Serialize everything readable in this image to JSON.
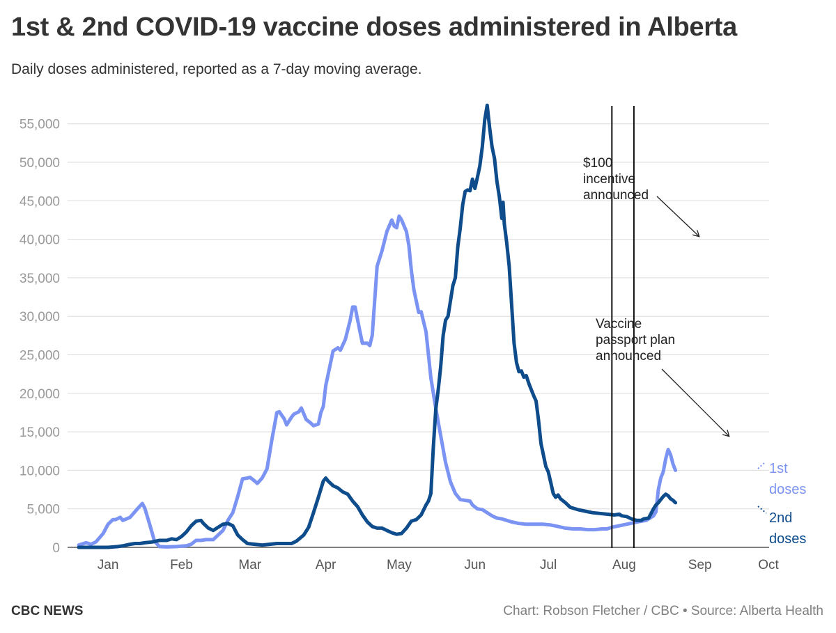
{
  "header": {
    "title": "1st & 2nd COVID-19 vaccine doses administered in Alberta",
    "subtitle": "Daily doses administered, reported as a 7-day moving average."
  },
  "footer": {
    "brand": "CBC NEWS",
    "credit": "Chart: Robson Fletcher / CBC • Source: Alberta Health"
  },
  "colors": {
    "first_doses": "#7b93f2",
    "second_doses": "#0e4c8c",
    "grid": "#dcdcdc",
    "axis_text": "#999999",
    "annotation": "#222222"
  },
  "chart_data": {
    "type": "line",
    "xlabel": "",
    "ylabel": "",
    "x_unit": "day of year 2021",
    "ylim": [
      0,
      57500
    ],
    "y_ticks": [
      0,
      5000,
      10000,
      15000,
      20000,
      25000,
      30000,
      35000,
      40000,
      45000,
      50000,
      55000
    ],
    "y_tick_labels": [
      "0",
      "5,000",
      "10,000",
      "15,000",
      "20,000",
      "25,000",
      "30,000",
      "35,000",
      "40,000",
      "45,000",
      "50,000",
      "55,000"
    ],
    "x_ticks": [
      {
        "label": "Jan",
        "day": 16
      },
      {
        "label": "Feb",
        "day": 46
      },
      {
        "label": "Mar",
        "day": 74
      },
      {
        "label": "Apr",
        "day": 105
      },
      {
        "label": "May",
        "day": 135
      },
      {
        "label": "Jun",
        "day": 166
      },
      {
        "label": "Jul",
        "day": 196
      },
      {
        "label": "Aug",
        "day": 227
      },
      {
        "label": "Sep",
        "day": 258
      },
      {
        "label": "Oct",
        "day": 286
      }
    ],
    "grid": true,
    "series": [
      {
        "name": "1st doses",
        "label_lines": [
          "1st",
          "doses"
        ],
        "color": "#7b93f2",
        "points": [
          [
            4,
            300
          ],
          [
            7,
            600
          ],
          [
            9,
            400
          ],
          [
            11,
            700
          ],
          [
            14,
            1800
          ],
          [
            16,
            3000
          ],
          [
            18,
            3600
          ],
          [
            19,
            3600
          ],
          [
            21,
            3900
          ],
          [
            22,
            3500
          ],
          [
            25,
            3900
          ],
          [
            28,
            5000
          ],
          [
            30,
            5700
          ],
          [
            31,
            5100
          ],
          [
            33,
            3000
          ],
          [
            35,
            800
          ],
          [
            37,
            100
          ],
          [
            40,
            50
          ],
          [
            44,
            100
          ],
          [
            46,
            150
          ],
          [
            48,
            200
          ],
          [
            50,
            400
          ],
          [
            52,
            900
          ],
          [
            54,
            900
          ],
          [
            56,
            1000
          ],
          [
            59,
            1000
          ],
          [
            61,
            1600
          ],
          [
            63,
            2200
          ],
          [
            65,
            3500
          ],
          [
            67,
            4500
          ],
          [
            69,
            6600
          ],
          [
            71,
            8900
          ],
          [
            73,
            9000
          ],
          [
            74,
            9100
          ],
          [
            76,
            8600
          ],
          [
            77,
            8300
          ],
          [
            79,
            9000
          ],
          [
            81,
            10200
          ],
          [
            83,
            14000
          ],
          [
            85,
            17500
          ],
          [
            86,
            17600
          ],
          [
            88,
            16700
          ],
          [
            89,
            15900
          ],
          [
            91,
            16900
          ],
          [
            92,
            17300
          ],
          [
            94,
            17600
          ],
          [
            95,
            18100
          ],
          [
            97,
            16600
          ],
          [
            99,
            16100
          ],
          [
            100,
            15800
          ],
          [
            102,
            16000
          ],
          [
            103,
            17500
          ],
          [
            104,
            18300
          ],
          [
            105,
            21000
          ],
          [
            107,
            24000
          ],
          [
            108,
            25500
          ],
          [
            110,
            25900
          ],
          [
            111,
            25600
          ],
          [
            113,
            27000
          ],
          [
            115,
            29500
          ],
          [
            116,
            31200
          ],
          [
            117,
            31200
          ],
          [
            119,
            28000
          ],
          [
            120,
            26500
          ],
          [
            122,
            26500
          ],
          [
            123,
            26200
          ],
          [
            124,
            27500
          ],
          [
            126,
            36500
          ],
          [
            128,
            38500
          ],
          [
            130,
            41000
          ],
          [
            132,
            42500
          ],
          [
            133,
            41700
          ],
          [
            134,
            41500
          ],
          [
            135,
            43000
          ],
          [
            136,
            42500
          ],
          [
            138,
            41000
          ],
          [
            139,
            39200
          ],
          [
            140,
            36000
          ],
          [
            141,
            33500
          ],
          [
            143,
            30500
          ],
          [
            144,
            30600
          ],
          [
            146,
            28000
          ],
          [
            148,
            22000
          ],
          [
            150,
            18000
          ],
          [
            152,
            14500
          ],
          [
            154,
            11000
          ],
          [
            156,
            8500
          ],
          [
            158,
            7000
          ],
          [
            160,
            6200
          ],
          [
            162,
            6100
          ],
          [
            164,
            6000
          ],
          [
            165,
            5500
          ],
          [
            167,
            5000
          ],
          [
            169,
            4900
          ],
          [
            171,
            4500
          ],
          [
            173,
            4100
          ],
          [
            175,
            3800
          ],
          [
            177,
            3700
          ],
          [
            179,
            3500
          ],
          [
            181,
            3300
          ],
          [
            184,
            3100
          ],
          [
            187,
            3000
          ],
          [
            190,
            3000
          ],
          [
            194,
            3000
          ],
          [
            197,
            2900
          ],
          [
            200,
            2700
          ],
          [
            203,
            2500
          ],
          [
            206,
            2400
          ],
          [
            209,
            2400
          ],
          [
            212,
            2300
          ],
          [
            215,
            2300
          ],
          [
            218,
            2400
          ],
          [
            220,
            2400
          ],
          [
            222,
            2600
          ],
          [
            225,
            2800
          ],
          [
            228,
            3000
          ],
          [
            231,
            3200
          ],
          [
            234,
            3400
          ],
          [
            236,
            3500
          ],
          [
            237,
            3700
          ],
          [
            239,
            4100
          ],
          [
            240,
            4600
          ],
          [
            241,
            7500
          ],
          [
            242,
            9000
          ],
          [
            243,
            9800
          ],
          [
            244,
            11500
          ],
          [
            245,
            12700
          ],
          [
            246,
            12000
          ],
          [
            247,
            10800
          ],
          [
            248,
            10000
          ]
        ]
      },
      {
        "name": "2nd doses",
        "label_lines": [
          "2nd",
          "doses"
        ],
        "color": "#0e4c8c",
        "points": [
          [
            4,
            0
          ],
          [
            10,
            0
          ],
          [
            16,
            0
          ],
          [
            20,
            100
          ],
          [
            22,
            200
          ],
          [
            25,
            400
          ],
          [
            27,
            500
          ],
          [
            29,
            500
          ],
          [
            31,
            600
          ],
          [
            34,
            700
          ],
          [
            37,
            900
          ],
          [
            40,
            900
          ],
          [
            42,
            1100
          ],
          [
            44,
            1000
          ],
          [
            46,
            1400
          ],
          [
            48,
            2000
          ],
          [
            50,
            2800
          ],
          [
            52,
            3400
          ],
          [
            54,
            3500
          ],
          [
            55,
            3100
          ],
          [
            57,
            2500
          ],
          [
            59,
            2200
          ],
          [
            61,
            2600
          ],
          [
            63,
            3000
          ],
          [
            65,
            3100
          ],
          [
            67,
            2800
          ],
          [
            69,
            1600
          ],
          [
            71,
            1000
          ],
          [
            73,
            500
          ],
          [
            76,
            400
          ],
          [
            79,
            300
          ],
          [
            82,
            400
          ],
          [
            85,
            500
          ],
          [
            88,
            500
          ],
          [
            91,
            500
          ],
          [
            93,
            800
          ],
          [
            96,
            1600
          ],
          [
            98,
            2600
          ],
          [
            100,
            4500
          ],
          [
            102,
            6500
          ],
          [
            104,
            8600
          ],
          [
            105,
            9000
          ],
          [
            106,
            8600
          ],
          [
            108,
            8000
          ],
          [
            110,
            7700
          ],
          [
            112,
            7200
          ],
          [
            114,
            6900
          ],
          [
            116,
            6000
          ],
          [
            118,
            5300
          ],
          [
            120,
            4200
          ],
          [
            122,
            3300
          ],
          [
            124,
            2700
          ],
          [
            126,
            2500
          ],
          [
            128,
            2500
          ],
          [
            130,
            2200
          ],
          [
            132,
            1900
          ],
          [
            134,
            1700
          ],
          [
            136,
            1800
          ],
          [
            138,
            2500
          ],
          [
            140,
            3400
          ],
          [
            142,
            3600
          ],
          [
            144,
            4200
          ],
          [
            146,
            5500
          ],
          [
            147,
            6000
          ],
          [
            148,
            7000
          ],
          [
            149,
            13000
          ],
          [
            150,
            18000
          ],
          [
            151,
            20500
          ],
          [
            152,
            23500
          ],
          [
            153,
            27500
          ],
          [
            154,
            29500
          ],
          [
            155,
            30000
          ],
          [
            157,
            34000
          ],
          [
            158,
            35000
          ],
          [
            159,
            39000
          ],
          [
            160,
            41500
          ],
          [
            161,
            44500
          ],
          [
            162,
            46200
          ],
          [
            163,
            46400
          ],
          [
            164,
            46300
          ],
          [
            165,
            47800
          ],
          [
            166,
            46600
          ],
          [
            167,
            48000
          ],
          [
            168,
            49500
          ],
          [
            169,
            52000
          ],
          [
            170,
            55500
          ],
          [
            171,
            57400
          ],
          [
            172,
            54500
          ],
          [
            173,
            52000
          ],
          [
            174,
            50500
          ],
          [
            175,
            47500
          ],
          [
            176,
            45500
          ],
          [
            177,
            42700
          ],
          [
            177.5,
            44800
          ],
          [
            178,
            42000
          ],
          [
            179,
            39500
          ],
          [
            180,
            36500
          ],
          [
            181,
            31500
          ],
          [
            182,
            26500
          ],
          [
            183,
            24000
          ],
          [
            184,
            22800
          ],
          [
            185,
            22900
          ],
          [
            186,
            22100
          ],
          [
            187,
            22300
          ],
          [
            188,
            21300
          ],
          [
            189,
            20500
          ],
          [
            190,
            19700
          ],
          [
            191,
            19000
          ],
          [
            192,
            16500
          ],
          [
            193,
            13500
          ],
          [
            194,
            12000
          ],
          [
            195,
            10500
          ],
          [
            196,
            9800
          ],
          [
            197,
            8400
          ],
          [
            198,
            7000
          ],
          [
            199,
            6500
          ],
          [
            200,
            6800
          ],
          [
            201,
            6300
          ],
          [
            203,
            5800
          ],
          [
            205,
            5200
          ],
          [
            208,
            4900
          ],
          [
            211,
            4700
          ],
          [
            214,
            4500
          ],
          [
            217,
            4400
          ],
          [
            220,
            4300
          ],
          [
            223,
            4200
          ],
          [
            225,
            4300
          ],
          [
            226,
            4100
          ],
          [
            228,
            4000
          ],
          [
            230,
            3700
          ],
          [
            232,
            3500
          ],
          [
            234,
            3500
          ],
          [
            235,
            3700
          ],
          [
            237,
            3800
          ],
          [
            239,
            5000
          ],
          [
            240,
            5500
          ],
          [
            241,
            5800
          ],
          [
            242,
            6200
          ],
          [
            243,
            6600
          ],
          [
            244,
            6900
          ],
          [
            245,
            6700
          ],
          [
            246,
            6300
          ],
          [
            247,
            6100
          ],
          [
            248,
            5800
          ]
        ]
      }
    ],
    "annotations": [
      {
        "label_lines": [
          "$100",
          "incentive",
          "announced"
        ],
        "day": 222
      },
      {
        "label_lines": [
          "Vaccine",
          "passport plan",
          "announced"
        ],
        "day": 231
      }
    ]
  }
}
